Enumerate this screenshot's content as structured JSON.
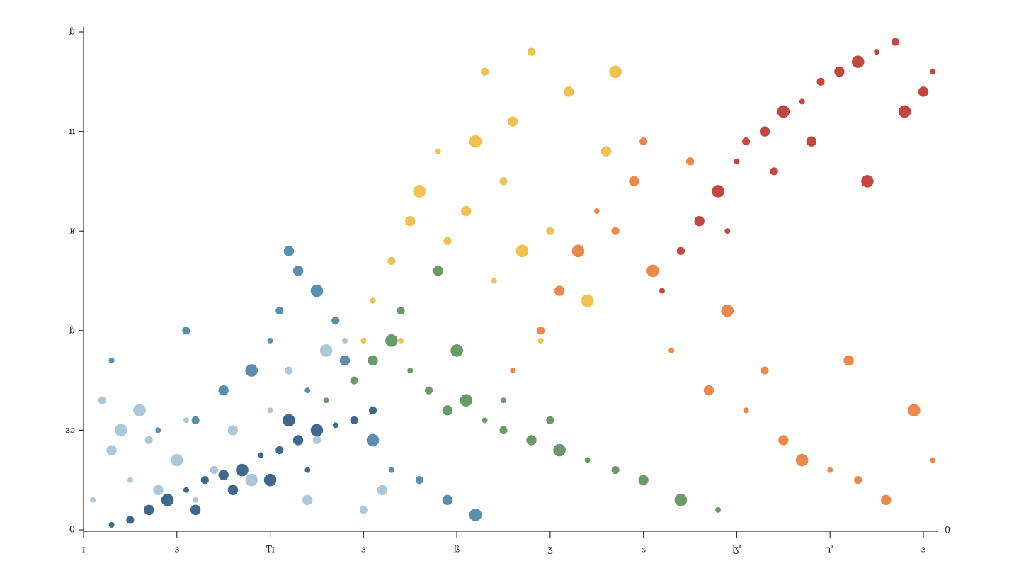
{
  "chart_data": {
    "type": "scatter",
    "xlim": [
      0,
      9
    ],
    "ylim": [
      0,
      5
    ],
    "xticks": [
      {
        "value": 0,
        "label": "ɪ"
      },
      {
        "value": 1,
        "label": "ɜ"
      },
      {
        "value": 2,
        "label": "Ƭɪ"
      },
      {
        "value": 3,
        "label": "ɜ"
      },
      {
        "value": 4,
        "label": "ß"
      },
      {
        "value": 5,
        "label": "ʒ"
      },
      {
        "value": 6,
        "label": "ϭ"
      },
      {
        "value": 7,
        "label": "ɮ'"
      },
      {
        "value": 8,
        "label": "ɿ'"
      },
      {
        "value": 9,
        "label": "ɜ"
      }
    ],
    "yticks": [
      0,
      {
        "value": 1,
        "label": "ɜɔ"
      },
      {
        "value": 2,
        "label": "ɓ"
      },
      {
        "value": 3,
        "label": "ʁ"
      },
      {
        "value": 4,
        "label": "ıı"
      },
      {
        "value": 5,
        "label": "ɓ"
      }
    ],
    "annotation": "0",
    "series": [
      {
        "color": "#9dbdd3",
        "x": [
          0.1,
          0.2,
          0.3,
          0.4,
          0.5,
          0.7,
          0.8,
          1.0,
          1.2,
          1.4,
          1.6,
          1.8,
          2.0,
          2.2,
          2.4,
          2.6,
          2.8,
          3.0,
          3.2,
          0.6,
          1.1,
          2.5
        ],
        "values": [
          0.3,
          1.3,
          0.8,
          1.0,
          0.5,
          0.9,
          0.4,
          0.7,
          0.3,
          0.6,
          1.0,
          0.5,
          1.2,
          1.6,
          0.3,
          1.8,
          1.9,
          0.2,
          0.4,
          1.2,
          1.1,
          0.9
        ]
      },
      {
        "color": "#1f4e79",
        "x": [
          0.3,
          0.5,
          0.7,
          0.9,
          1.1,
          1.3,
          1.5,
          1.7,
          1.9,
          2.1,
          2.3,
          2.5,
          2.7,
          2.9,
          1.6,
          2.0,
          2.4,
          3.1,
          1.2,
          2.2
        ],
        "values": [
          0.05,
          0.1,
          0.2,
          0.3,
          0.4,
          0.5,
          0.55,
          0.6,
          0.75,
          0.8,
          0.9,
          1.0,
          1.05,
          1.1,
          0.4,
          0.5,
          0.6,
          1.2,
          0.2,
          1.1
        ]
      },
      {
        "color": "#3c7aa0",
        "x": [
          0.8,
          1.2,
          1.5,
          1.8,
          2.0,
          2.1,
          2.3,
          2.5,
          2.4,
          2.7,
          2.8,
          3.1,
          3.3,
          3.6,
          3.9,
          4.2,
          0.3,
          1.1,
          2.2
        ],
        "values": [
          1.0,
          1.1,
          1.4,
          1.6,
          1.9,
          2.2,
          2.6,
          2.4,
          1.4,
          2.1,
          1.7,
          0.9,
          0.6,
          0.5,
          0.3,
          0.15,
          1.7,
          2.0,
          2.8
        ]
      },
      {
        "color": "#4e8a4a",
        "x": [
          2.6,
          2.9,
          3.1,
          3.3,
          3.5,
          3.7,
          3.9,
          4.1,
          4.3,
          4.5,
          4.8,
          5.1,
          5.4,
          5.7,
          6.0,
          6.4,
          6.8,
          3.4,
          3.8,
          4.0,
          4.5,
          5.0
        ],
        "values": [
          1.3,
          1.5,
          1.7,
          1.9,
          1.6,
          1.4,
          1.2,
          1.3,
          1.1,
          1.0,
          0.9,
          0.8,
          0.7,
          0.6,
          0.5,
          0.3,
          0.2,
          2.2,
          2.6,
          1.8,
          1.3,
          1.1
        ]
      },
      {
        "color": "#f0b531",
        "x": [
          3.1,
          3.3,
          3.5,
          3.6,
          3.8,
          3.9,
          4.1,
          4.2,
          4.4,
          4.5,
          4.6,
          4.7,
          4.9,
          5.0,
          5.2,
          5.4,
          3.4,
          4.3,
          5.6,
          5.7,
          3.0,
          4.8
        ],
        "values": [
          2.3,
          2.7,
          3.1,
          3.4,
          3.8,
          2.9,
          3.2,
          3.9,
          2.5,
          3.5,
          4.1,
          2.8,
          1.9,
          3.0,
          4.4,
          2.3,
          1.9,
          4.6,
          3.8,
          4.6,
          1.9,
          4.8
        ]
      },
      {
        "color": "#e8742a",
        "x": [
          4.6,
          4.9,
          5.1,
          5.3,
          5.5,
          5.7,
          5.9,
          6.1,
          6.3,
          6.5,
          6.7,
          6.9,
          7.1,
          7.3,
          7.5,
          7.7,
          8.0,
          8.3,
          8.6,
          8.9,
          9.1,
          6.0,
          8.2
        ],
        "values": [
          1.6,
          2.0,
          2.4,
          2.8,
          3.2,
          3.0,
          3.5,
          2.6,
          1.8,
          3.7,
          1.4,
          2.2,
          1.2,
          1.6,
          0.9,
          0.7,
          0.6,
          0.5,
          0.3,
          1.2,
          0.7,
          3.9,
          1.7
        ]
      },
      {
        "color": "#b8271e",
        "x": [
          6.2,
          6.4,
          6.6,
          6.8,
          7.0,
          7.1,
          7.3,
          7.5,
          7.7,
          7.9,
          8.1,
          8.3,
          8.5,
          8.7,
          9.0,
          8.8,
          9.1,
          7.4,
          7.8,
          8.4,
          6.9
        ],
        "values": [
          2.4,
          2.8,
          3.1,
          3.4,
          3.7,
          3.9,
          4.0,
          4.2,
          4.3,
          4.5,
          4.6,
          4.7,
          4.8,
          4.9,
          4.4,
          4.2,
          4.6,
          3.6,
          3.9,
          3.5,
          3.0
        ]
      }
    ]
  }
}
